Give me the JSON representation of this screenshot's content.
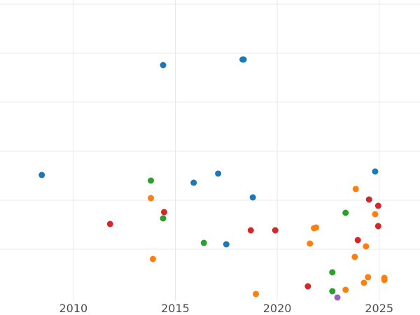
{
  "chart_data": {
    "type": "scatter",
    "title": "",
    "xlabel": "",
    "ylabel": "",
    "xlim": [
      2006.4,
      2027.0
    ],
    "x_ticks": [
      2010,
      2015,
      2020,
      2025
    ],
    "x_tick_labels": [
      "2010",
      "2015",
      "2020",
      "2025"
    ],
    "grid": true,
    "legend": "none",
    "series": [
      {
        "color": "#1f77b4",
        "points": [
          {
            "x": 2008.45,
            "y": 250
          },
          {
            "x": 2014.4,
            "y": 93
          },
          {
            "x": 2015.9,
            "y": 261
          },
          {
            "x": 2017.1,
            "y": 248
          },
          {
            "x": 2017.5,
            "y": 349
          },
          {
            "x": 2018.3,
            "y": 85
          },
          {
            "x": 2018.35,
            "y": 85
          },
          {
            "x": 2018.8,
            "y": 282
          },
          {
            "x": 2024.8,
            "y": 245
          }
        ]
      },
      {
        "color": "#ff7f0e",
        "points": [
          {
            "x": 2013.8,
            "y": 283
          },
          {
            "x": 2013.9,
            "y": 370
          },
          {
            "x": 2018.95,
            "y": 420
          },
          {
            "x": 2021.6,
            "y": 348
          },
          {
            "x": 2021.8,
            "y": 326
          },
          {
            "x": 2021.9,
            "y": 325
          },
          {
            "x": 2023.35,
            "y": 414
          },
          {
            "x": 2023.8,
            "y": 367
          },
          {
            "x": 2023.85,
            "y": 270
          },
          {
            "x": 2024.25,
            "y": 404
          },
          {
            "x": 2024.35,
            "y": 352
          },
          {
            "x": 2024.45,
            "y": 396
          },
          {
            "x": 2024.8,
            "y": 306
          },
          {
            "x": 2025.25,
            "y": 397
          },
          {
            "x": 2025.25,
            "y": 400
          }
        ]
      },
      {
        "color": "#2ca02c",
        "points": [
          {
            "x": 2013.8,
            "y": 258
          },
          {
            "x": 2014.4,
            "y": 312
          },
          {
            "x": 2016.4,
            "y": 347
          },
          {
            "x": 2022.7,
            "y": 389
          },
          {
            "x": 2022.7,
            "y": 416
          },
          {
            "x": 2023.35,
            "y": 304
          }
        ]
      },
      {
        "color": "#d62728",
        "points": [
          {
            "x": 2011.8,
            "y": 320
          },
          {
            "x": 2014.45,
            "y": 303
          },
          {
            "x": 2018.7,
            "y": 329
          },
          {
            "x": 2019.9,
            "y": 329
          },
          {
            "x": 2021.5,
            "y": 409
          },
          {
            "x": 2023.95,
            "y": 343
          },
          {
            "x": 2024.5,
            "y": 285
          },
          {
            "x": 2024.95,
            "y": 294
          },
          {
            "x": 2024.95,
            "y": 323
          }
        ]
      },
      {
        "color": "#9467bd",
        "points": [
          {
            "x": 2022.95,
            "y": 425
          }
        ]
      }
    ]
  }
}
